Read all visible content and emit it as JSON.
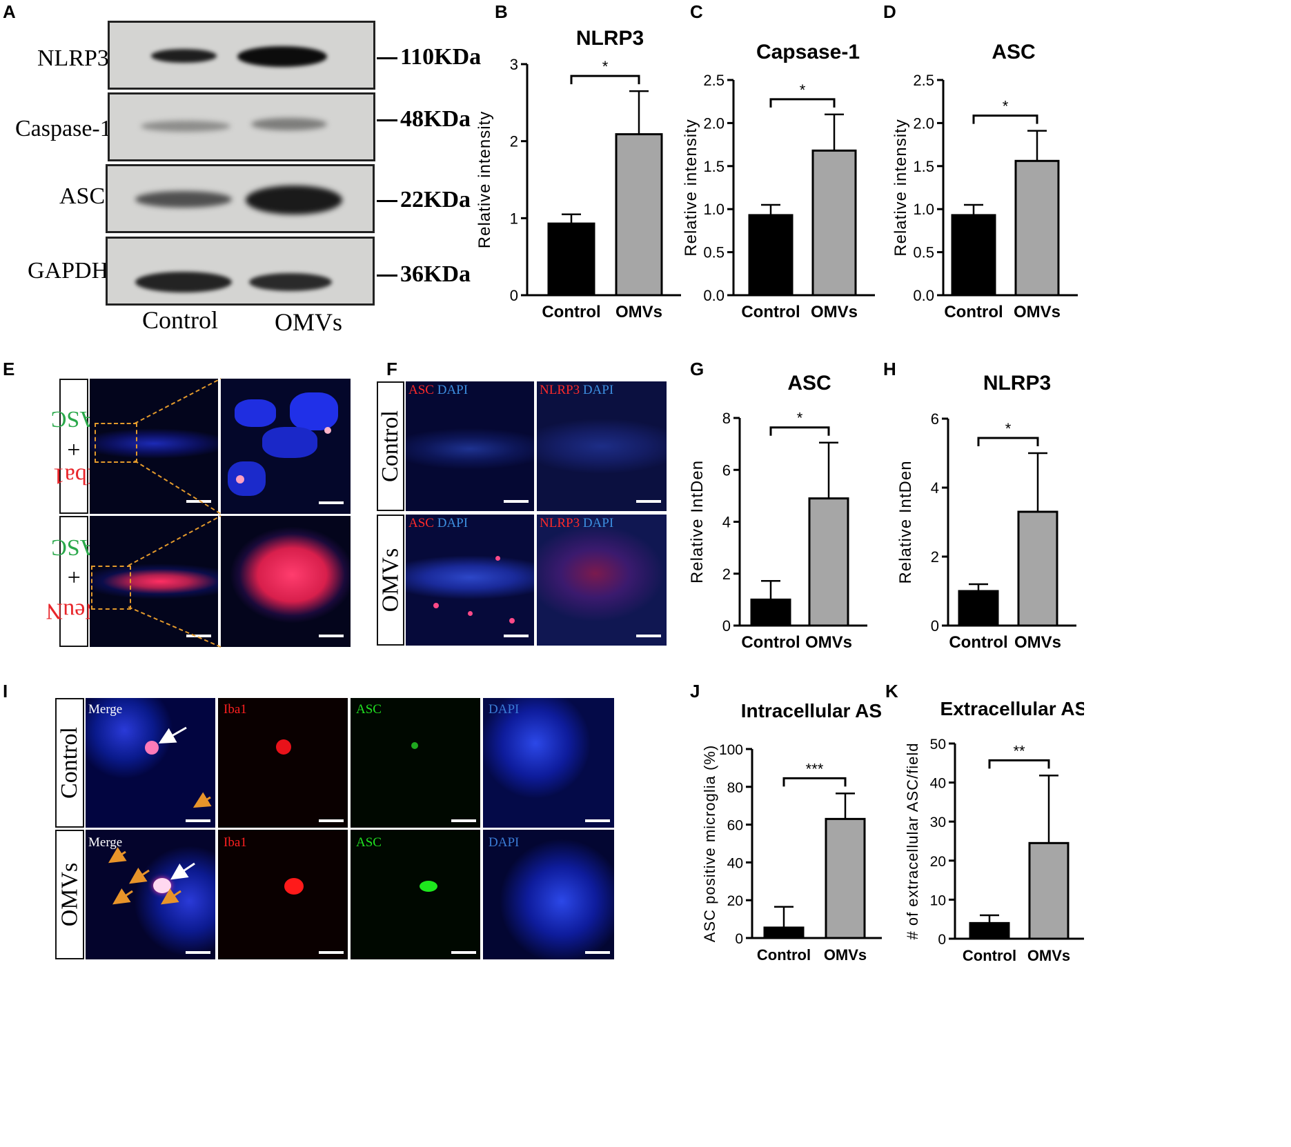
{
  "panels": {
    "A": {
      "letter": "A",
      "rows": [
        {
          "label": "NLRP3",
          "kda": "110KDa"
        },
        {
          "label": "Caspase-1",
          "kda": "48KDa"
        },
        {
          "label": "ASC",
          "kda": "22KDa"
        },
        {
          "label": "GAPDH",
          "kda": "36KDa"
        }
      ],
      "lanes": [
        "Control",
        "OMVs"
      ]
    },
    "E": {
      "letter": "E",
      "rows": [
        {
          "stain_red": "Iba1",
          "plus": "+",
          "stain_green": "ASC"
        },
        {
          "stain_red": "NeuN",
          "plus": "+",
          "stain_green": "ASC"
        }
      ]
    },
    "F": {
      "letter": "F",
      "rows": [
        "Control",
        "OMVs"
      ],
      "columns": [
        {
          "red": "ASC",
          "blue": "DAPI"
        },
        {
          "red": "NLRP3",
          "blue": "DAPI"
        }
      ]
    },
    "I": {
      "letter": "I",
      "rows": [
        "Control",
        "OMVs"
      ],
      "channels": [
        {
          "name": "Merge",
          "color": "#ffffff"
        },
        {
          "name": "Iba1",
          "color": "#ff2020"
        },
        {
          "name": "ASC",
          "color": "#20e020"
        },
        {
          "name": "DAPI",
          "color": "#3a7bd5"
        }
      ]
    }
  },
  "chart_data": [
    {
      "panel": "B",
      "type": "bar",
      "title": "NLRP3",
      "xlabel": "",
      "ylabel": "Relative intensity",
      "categories": [
        "Control",
        "OMVs"
      ],
      "values": [
        0.93,
        2.09
      ],
      "errors": [
        0.12,
        0.56
      ],
      "ylim": [
        0,
        3
      ],
      "yticks": [
        "0",
        "1",
        "2",
        "3"
      ],
      "significance": "*",
      "colors": [
        "#000000",
        "#a6a6a6"
      ]
    },
    {
      "panel": "C",
      "type": "bar",
      "title": "Capsase-1",
      "xlabel": "",
      "ylabel": "Relative intensity",
      "categories": [
        "Control",
        "OMVs"
      ],
      "values": [
        0.93,
        1.68
      ],
      "errors": [
        0.12,
        0.42
      ],
      "ylim": [
        0,
        2.5
      ],
      "yticks": [
        "0.0",
        "0.5",
        "1.0",
        "1.5",
        "2.0",
        "2.5"
      ],
      "significance": "*",
      "colors": [
        "#000000",
        "#a6a6a6"
      ]
    },
    {
      "panel": "D",
      "type": "bar",
      "title": "ASC",
      "xlabel": "",
      "ylabel": "Relative intensity",
      "categories": [
        "Control",
        "OMVs"
      ],
      "values": [
        0.93,
        1.56
      ],
      "errors": [
        0.12,
        0.35
      ],
      "ylim": [
        0,
        2.5
      ],
      "yticks": [
        "0.0",
        "0.5",
        "1.0",
        "1.5",
        "2.0",
        "2.5"
      ],
      "significance": "*",
      "colors": [
        "#000000",
        "#a6a6a6"
      ]
    },
    {
      "panel": "G",
      "type": "bar",
      "title": "ASC",
      "xlabel": "",
      "ylabel": "Relative IntDen",
      "categories": [
        "Control",
        "OMVs"
      ],
      "values": [
        1.0,
        4.9
      ],
      "errors": [
        0.72,
        2.15
      ],
      "ylim": [
        0,
        8
      ],
      "yticks": [
        "0",
        "2",
        "4",
        "6",
        "8"
      ],
      "significance": "*",
      "colors": [
        "#000000",
        "#a6a6a6"
      ]
    },
    {
      "panel": "H",
      "type": "bar",
      "title": "NLRP3",
      "xlabel": "",
      "ylabel": "Relative IntDen",
      "categories": [
        "Control",
        "OMVs"
      ],
      "values": [
        1.0,
        3.3
      ],
      "errors": [
        0.2,
        1.7
      ],
      "ylim": [
        0,
        6
      ],
      "yticks": [
        "0",
        "2",
        "4",
        "6"
      ],
      "significance": "*",
      "colors": [
        "#000000",
        "#a6a6a6"
      ]
    },
    {
      "panel": "J",
      "type": "bar",
      "title": "Intracellular ASC",
      "xlabel": "",
      "ylabel": "ASC positive microglia (%)",
      "categories": [
        "Control",
        "OMVs"
      ],
      "values": [
        5.5,
        63.0
      ],
      "errors": [
        11.0,
        13.5
      ],
      "ylim": [
        0,
        100
      ],
      "yticks": [
        "0",
        "20",
        "40",
        "60",
        "80",
        "100"
      ],
      "significance": "***",
      "colors": [
        "#000000",
        "#a6a6a6"
      ]
    },
    {
      "panel": "K",
      "type": "bar",
      "title": "Extracellular ASC",
      "xlabel": "",
      "ylabel": "# of extracellular ASC/field",
      "categories": [
        "Control",
        "OMVs"
      ],
      "values": [
        4.0,
        24.5
      ],
      "errors": [
        2.0,
        17.3
      ],
      "ylim": [
        0,
        50
      ],
      "yticks": [
        "0",
        "10",
        "20",
        "30",
        "40",
        "50"
      ],
      "significance": "**",
      "colors": [
        "#000000",
        "#a6a6a6"
      ]
    }
  ]
}
